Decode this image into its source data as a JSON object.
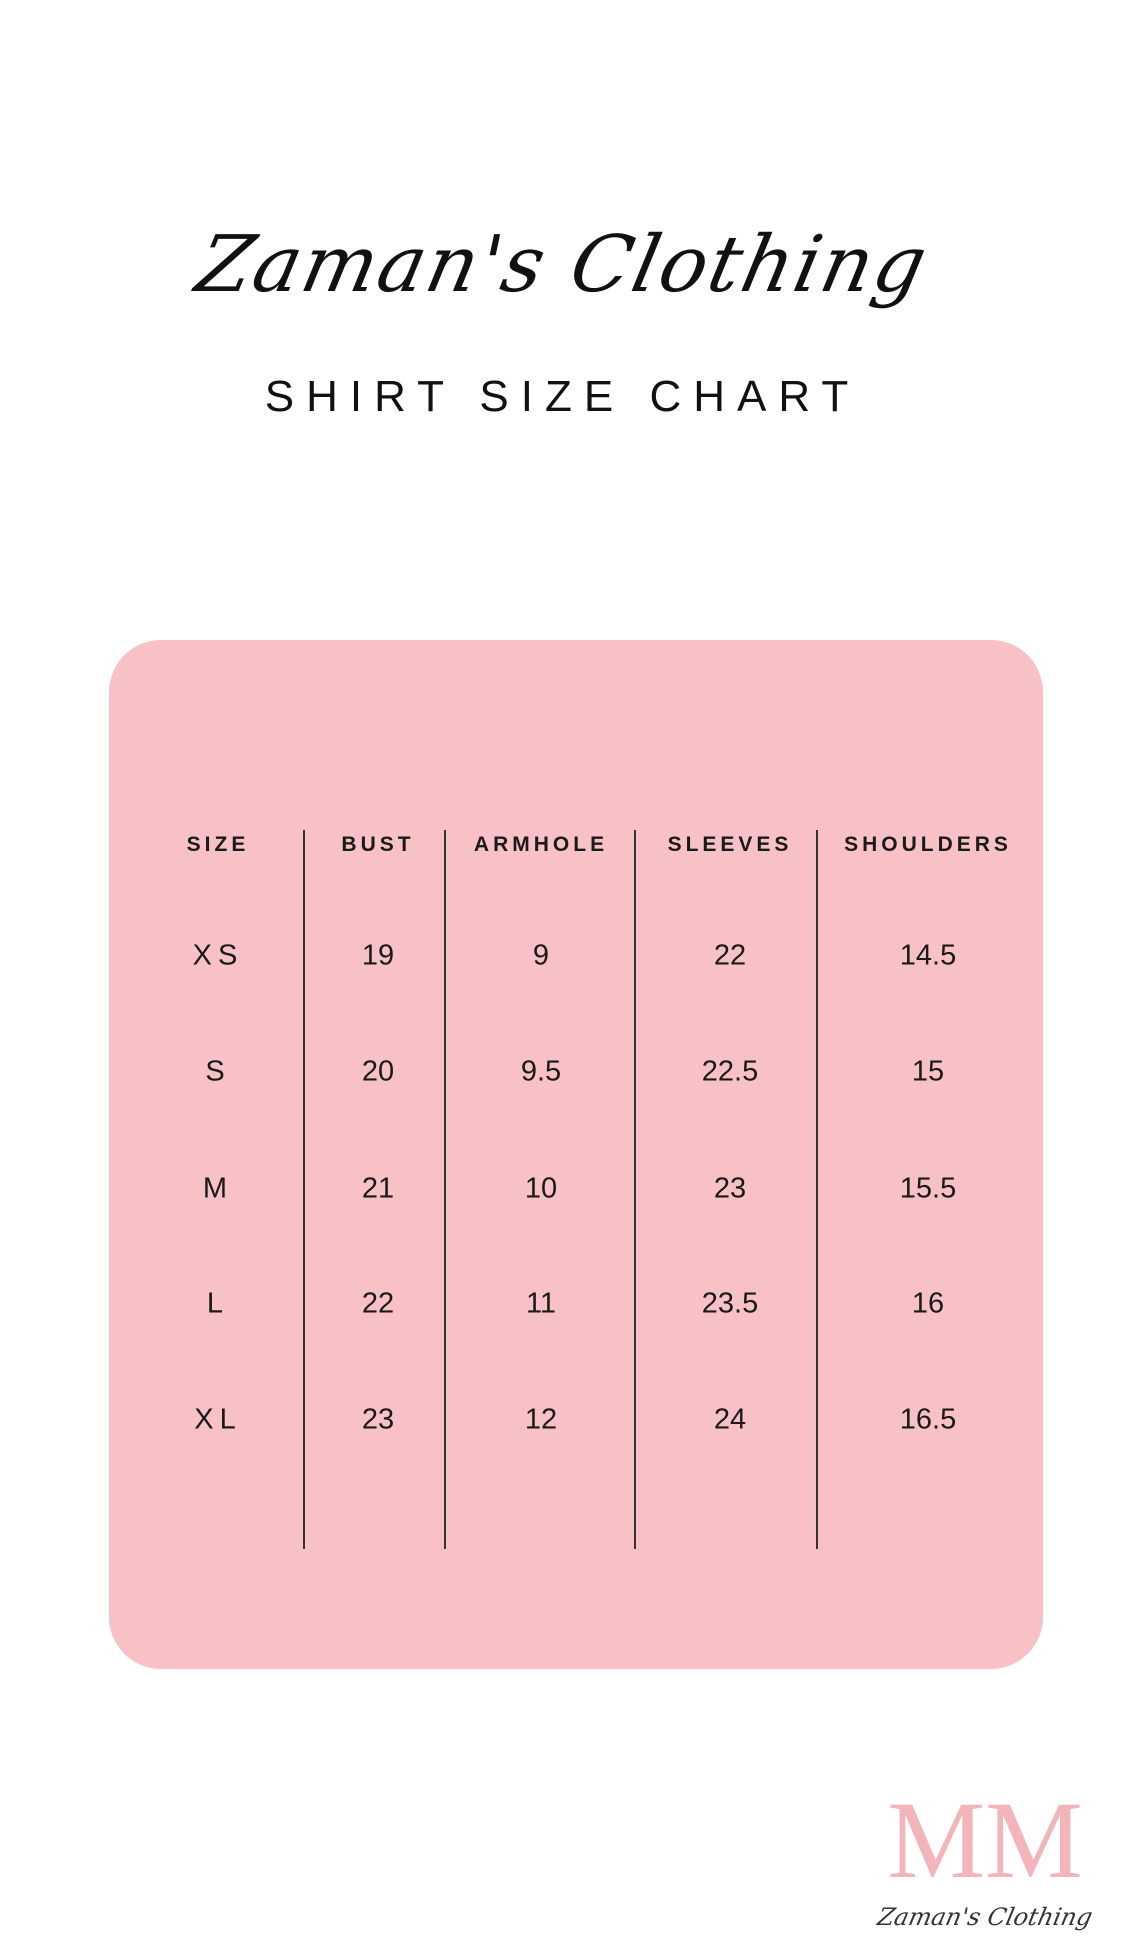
{
  "brand": "Zaman's Clothing",
  "subtitle": "SHIRT SIZE CHART",
  "colors": {
    "card": "#f8c1c6",
    "logo": "#f4b5ba"
  },
  "table": {
    "headers": [
      "SIZE",
      "BUST",
      "ARMHOLE",
      "SLEEVES",
      "SHOULDERS"
    ],
    "rows": [
      [
        "XS",
        "19",
        "9",
        "22",
        "14.5"
      ],
      [
        "S",
        "20",
        "9.5",
        "22.5",
        "15"
      ],
      [
        "M",
        "21",
        "10",
        "23",
        "15.5"
      ],
      [
        "L",
        "22",
        "11",
        "23.5",
        "16"
      ],
      [
        "XL",
        "23",
        "12",
        "24",
        "16.5"
      ]
    ]
  },
  "logo": {
    "monogram": "MM",
    "script": "Zaman's Clothing"
  }
}
